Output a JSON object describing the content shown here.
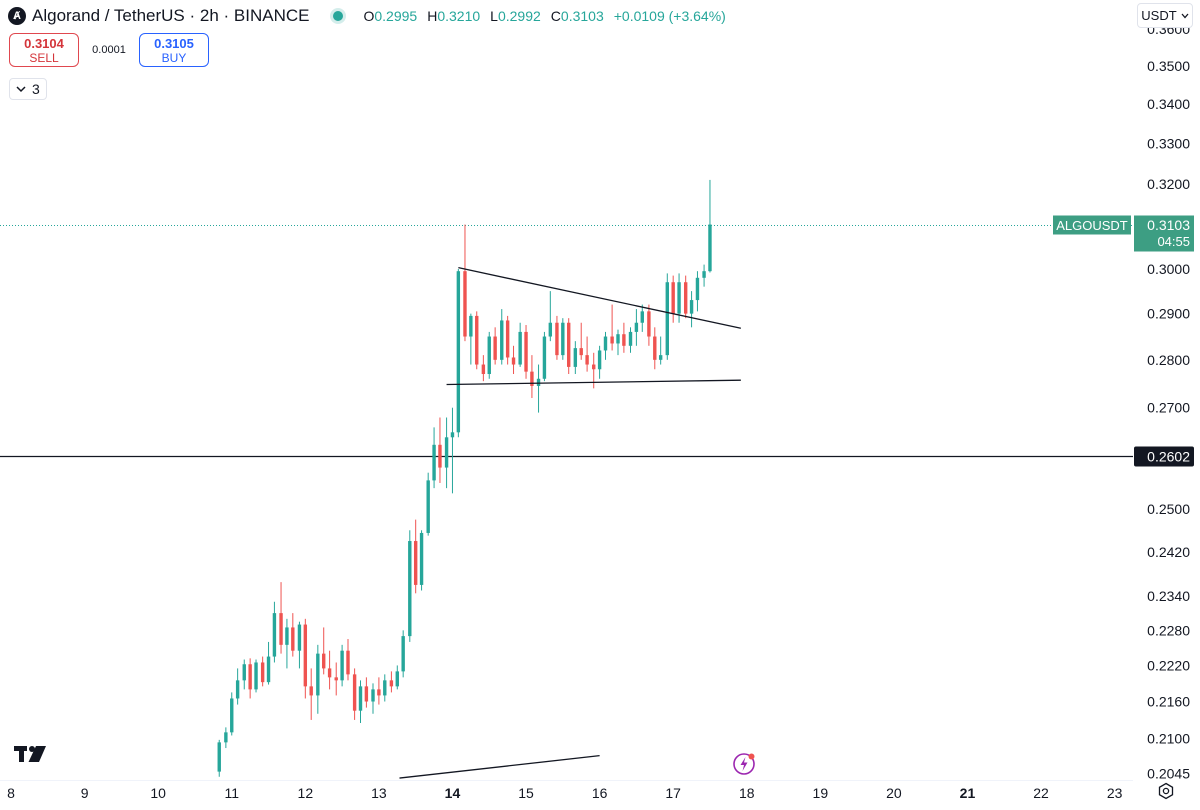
{
  "header": {
    "logo_icon": "algorand-logo-icon",
    "title": "Algorand / TetherUS · 2h · BINANCE",
    "ohlc": [
      {
        "k": "O",
        "v": "0.2995"
      },
      {
        "k": "H",
        "v": "0.3210"
      },
      {
        "k": "L",
        "v": "0.2992"
      },
      {
        "k": "C",
        "v": "0.3103"
      }
    ],
    "change": "+0.0109 (+3.64%)"
  },
  "trade": {
    "sell_price": "0.3104",
    "sell_label": "SELL",
    "spread": "0.0001",
    "buy_price": "0.3105",
    "buy_label": "BUY"
  },
  "indicators": {
    "count": "3"
  },
  "currency": {
    "label": "USDT"
  },
  "colors": {
    "up": "#26a69a",
    "down": "#ef5350",
    "price_tag": "#3d9e83",
    "level_tag": "#131722"
  },
  "chart_data": {
    "type": "candlestick",
    "symbol": "ALGOUSDT",
    "interval": "2h",
    "y_ticks": [
      "0.3600",
      "0.3500",
      "0.3400",
      "0.3300",
      "0.3200",
      "0.3000",
      "0.2900",
      "0.2800",
      "0.2700",
      "0.2500",
      "0.2420",
      "0.2340",
      "0.2280",
      "0.2220",
      "0.2160",
      "0.2100",
      "0.2045"
    ],
    "y_scale": "log",
    "y_range": [
      0.2035,
      0.368
    ],
    "x_labels": [
      {
        "day": 8,
        "label": "8"
      },
      {
        "day": 9,
        "label": "9"
      },
      {
        "day": 10,
        "label": "10"
      },
      {
        "day": 11,
        "label": "11"
      },
      {
        "day": 12,
        "label": "12"
      },
      {
        "day": 13,
        "label": "13"
      },
      {
        "day": 14,
        "label": "14",
        "bold": true
      },
      {
        "day": 15,
        "label": "15"
      },
      {
        "day": 16,
        "label": "16"
      },
      {
        "day": 17,
        "label": "17"
      },
      {
        "day": 18,
        "label": "18"
      },
      {
        "day": 19,
        "label": "19"
      },
      {
        "day": 20,
        "label": "20"
      },
      {
        "day": 21,
        "label": "21",
        "bold": true
      },
      {
        "day": 22,
        "label": "22"
      },
      {
        "day": 23,
        "label": "23"
      }
    ],
    "x_range": [
      7.85,
      23.25
    ],
    "candles": [
      {
        "t": 10.83,
        "o": 0.2048,
        "h": 0.2098,
        "l": 0.204,
        "c": 0.2094
      },
      {
        "t": 10.92,
        "o": 0.2094,
        "h": 0.2118,
        "l": 0.2085,
        "c": 0.211
      },
      {
        "t": 11.0,
        "o": 0.211,
        "h": 0.2175,
        "l": 0.2105,
        "c": 0.2165
      },
      {
        "t": 11.08,
        "o": 0.2165,
        "h": 0.2215,
        "l": 0.2155,
        "c": 0.2195
      },
      {
        "t": 11.17,
        "o": 0.2195,
        "h": 0.223,
        "l": 0.218,
        "c": 0.2222
      },
      {
        "t": 11.25,
        "o": 0.2222,
        "h": 0.2232,
        "l": 0.2165,
        "c": 0.218
      },
      {
        "t": 11.33,
        "o": 0.218,
        "h": 0.223,
        "l": 0.2175,
        "c": 0.2225
      },
      {
        "t": 11.42,
        "o": 0.2225,
        "h": 0.2235,
        "l": 0.2185,
        "c": 0.2192
      },
      {
        "t": 11.5,
        "o": 0.2192,
        "h": 0.226,
        "l": 0.2188,
        "c": 0.2235
      },
      {
        "t": 11.58,
        "o": 0.2235,
        "h": 0.233,
        "l": 0.2225,
        "c": 0.231
      },
      {
        "t": 11.67,
        "o": 0.231,
        "h": 0.2365,
        "l": 0.224,
        "c": 0.2255
      },
      {
        "t": 11.75,
        "o": 0.2255,
        "h": 0.23,
        "l": 0.2215,
        "c": 0.2285
      },
      {
        "t": 11.83,
        "o": 0.2285,
        "h": 0.231,
        "l": 0.2235,
        "c": 0.2245
      },
      {
        "t": 11.92,
        "o": 0.2245,
        "h": 0.2295,
        "l": 0.2215,
        "c": 0.229
      },
      {
        "t": 12.0,
        "o": 0.229,
        "h": 0.23,
        "l": 0.2165,
        "c": 0.2185
      },
      {
        "t": 12.08,
        "o": 0.2185,
        "h": 0.2215,
        "l": 0.213,
        "c": 0.217
      },
      {
        "t": 12.17,
        "o": 0.217,
        "h": 0.2255,
        "l": 0.214,
        "c": 0.224
      },
      {
        "t": 12.25,
        "o": 0.224,
        "h": 0.2285,
        "l": 0.2205,
        "c": 0.2215
      },
      {
        "t": 12.33,
        "o": 0.2215,
        "h": 0.2245,
        "l": 0.218,
        "c": 0.22
      },
      {
        "t": 12.42,
        "o": 0.22,
        "h": 0.2225,
        "l": 0.217,
        "c": 0.2195
      },
      {
        "t": 12.5,
        "o": 0.2195,
        "h": 0.2255,
        "l": 0.2185,
        "c": 0.2245
      },
      {
        "t": 12.58,
        "o": 0.2245,
        "h": 0.2265,
        "l": 0.2195,
        "c": 0.2205
      },
      {
        "t": 12.67,
        "o": 0.2205,
        "h": 0.2215,
        "l": 0.213,
        "c": 0.2145
      },
      {
        "t": 12.75,
        "o": 0.2145,
        "h": 0.2195,
        "l": 0.2125,
        "c": 0.2185
      },
      {
        "t": 12.83,
        "o": 0.2185,
        "h": 0.22,
        "l": 0.215,
        "c": 0.216
      },
      {
        "t": 12.92,
        "o": 0.216,
        "h": 0.219,
        "l": 0.214,
        "c": 0.218
      },
      {
        "t": 13.0,
        "o": 0.218,
        "h": 0.22,
        "l": 0.2155,
        "c": 0.217
      },
      {
        "t": 13.08,
        "o": 0.217,
        "h": 0.2205,
        "l": 0.216,
        "c": 0.2195
      },
      {
        "t": 13.17,
        "o": 0.2195,
        "h": 0.221,
        "l": 0.2175,
        "c": 0.2185
      },
      {
        "t": 13.25,
        "o": 0.2185,
        "h": 0.222,
        "l": 0.218,
        "c": 0.221
      },
      {
        "t": 13.33,
        "o": 0.221,
        "h": 0.228,
        "l": 0.22,
        "c": 0.227
      },
      {
        "t": 13.42,
        "o": 0.227,
        "h": 0.246,
        "l": 0.226,
        "c": 0.244
      },
      {
        "t": 13.5,
        "o": 0.244,
        "h": 0.248,
        "l": 0.2345,
        "c": 0.236
      },
      {
        "t": 13.58,
        "o": 0.236,
        "h": 0.246,
        "l": 0.235,
        "c": 0.2455
      },
      {
        "t": 13.67,
        "o": 0.2455,
        "h": 0.257,
        "l": 0.245,
        "c": 0.2555
      },
      {
        "t": 13.75,
        "o": 0.2555,
        "h": 0.266,
        "l": 0.254,
        "c": 0.2625
      },
      {
        "t": 13.83,
        "o": 0.2625,
        "h": 0.268,
        "l": 0.255,
        "c": 0.258
      },
      {
        "t": 13.92,
        "o": 0.258,
        "h": 0.268,
        "l": 0.254,
        "c": 0.264
      },
      {
        "t": 14.0,
        "o": 0.264,
        "h": 0.27,
        "l": 0.253,
        "c": 0.265
      },
      {
        "t": 14.08,
        "o": 0.265,
        "h": 0.3,
        "l": 0.264,
        "c": 0.2995
      },
      {
        "t": 14.17,
        "o": 0.2995,
        "h": 0.3103,
        "l": 0.284,
        "c": 0.285
      },
      {
        "t": 14.25,
        "o": 0.285,
        "h": 0.29,
        "l": 0.279,
        "c": 0.2895
      },
      {
        "t": 14.33,
        "o": 0.2895,
        "h": 0.2905,
        "l": 0.278,
        "c": 0.279
      },
      {
        "t": 14.42,
        "o": 0.279,
        "h": 0.281,
        "l": 0.2755,
        "c": 0.277
      },
      {
        "t": 14.5,
        "o": 0.277,
        "h": 0.286,
        "l": 0.276,
        "c": 0.285
      },
      {
        "t": 14.58,
        "o": 0.285,
        "h": 0.287,
        "l": 0.279,
        "c": 0.28
      },
      {
        "t": 14.67,
        "o": 0.28,
        "h": 0.291,
        "l": 0.279,
        "c": 0.2885
      },
      {
        "t": 14.75,
        "o": 0.2885,
        "h": 0.2895,
        "l": 0.279,
        "c": 0.2805
      },
      {
        "t": 14.83,
        "o": 0.2805,
        "h": 0.283,
        "l": 0.277,
        "c": 0.279
      },
      {
        "t": 14.92,
        "o": 0.279,
        "h": 0.288,
        "l": 0.2785,
        "c": 0.286
      },
      {
        "t": 15.0,
        "o": 0.286,
        "h": 0.2875,
        "l": 0.276,
        "c": 0.2775
      },
      {
        "t": 15.08,
        "o": 0.2775,
        "h": 0.281,
        "l": 0.272,
        "c": 0.2745
      },
      {
        "t": 15.17,
        "o": 0.2745,
        "h": 0.279,
        "l": 0.269,
        "c": 0.276
      },
      {
        "t": 15.25,
        "o": 0.276,
        "h": 0.286,
        "l": 0.2755,
        "c": 0.285
      },
      {
        "t": 15.33,
        "o": 0.285,
        "h": 0.295,
        "l": 0.284,
        "c": 0.288
      },
      {
        "t": 15.42,
        "o": 0.288,
        "h": 0.2895,
        "l": 0.28,
        "c": 0.281
      },
      {
        "t": 15.5,
        "o": 0.281,
        "h": 0.289,
        "l": 0.28,
        "c": 0.288
      },
      {
        "t": 15.58,
        "o": 0.288,
        "h": 0.289,
        "l": 0.277,
        "c": 0.2785
      },
      {
        "t": 15.67,
        "o": 0.2785,
        "h": 0.284,
        "l": 0.277,
        "c": 0.2825
      },
      {
        "t": 15.75,
        "o": 0.2825,
        "h": 0.288,
        "l": 0.28,
        "c": 0.281
      },
      {
        "t": 15.83,
        "o": 0.281,
        "h": 0.285,
        "l": 0.2775,
        "c": 0.279
      },
      {
        "t": 15.92,
        "o": 0.279,
        "h": 0.2815,
        "l": 0.274,
        "c": 0.278
      },
      {
        "t": 16.0,
        "o": 0.278,
        "h": 0.283,
        "l": 0.276,
        "c": 0.282
      },
      {
        "t": 16.08,
        "o": 0.282,
        "h": 0.286,
        "l": 0.28,
        "c": 0.285
      },
      {
        "t": 16.17,
        "o": 0.285,
        "h": 0.292,
        "l": 0.282,
        "c": 0.2835
      },
      {
        "t": 16.25,
        "o": 0.2835,
        "h": 0.2865,
        "l": 0.281,
        "c": 0.2855
      },
      {
        "t": 16.33,
        "o": 0.2855,
        "h": 0.288,
        "l": 0.2815,
        "c": 0.283
      },
      {
        "t": 16.42,
        "o": 0.283,
        "h": 0.287,
        "l": 0.2815,
        "c": 0.286
      },
      {
        "t": 16.5,
        "o": 0.286,
        "h": 0.291,
        "l": 0.283,
        "c": 0.288
      },
      {
        "t": 16.58,
        "o": 0.288,
        "h": 0.292,
        "l": 0.286,
        "c": 0.2905
      },
      {
        "t": 16.67,
        "o": 0.2905,
        "h": 0.292,
        "l": 0.283,
        "c": 0.285
      },
      {
        "t": 16.75,
        "o": 0.285,
        "h": 0.287,
        "l": 0.278,
        "c": 0.28
      },
      {
        "t": 16.83,
        "o": 0.28,
        "h": 0.285,
        "l": 0.279,
        "c": 0.281
      },
      {
        "t": 16.92,
        "o": 0.281,
        "h": 0.299,
        "l": 0.28,
        "c": 0.297
      },
      {
        "t": 17.0,
        "o": 0.297,
        "h": 0.2985,
        "l": 0.288,
        "c": 0.29
      },
      {
        "t": 17.08,
        "o": 0.29,
        "h": 0.299,
        "l": 0.288,
        "c": 0.297
      },
      {
        "t": 17.17,
        "o": 0.297,
        "h": 0.2985,
        "l": 0.289,
        "c": 0.29
      },
      {
        "t": 17.25,
        "o": 0.29,
        "h": 0.295,
        "l": 0.287,
        "c": 0.293
      },
      {
        "t": 17.33,
        "o": 0.293,
        "h": 0.2995,
        "l": 0.2905,
        "c": 0.298
      },
      {
        "t": 17.42,
        "o": 0.298,
        "h": 0.301,
        "l": 0.296,
        "c": 0.2995
      },
      {
        "t": 17.5,
        "o": 0.2995,
        "h": 0.321,
        "l": 0.2992,
        "c": 0.3103
      }
    ],
    "price_line": {
      "value": 0.3103,
      "symbol_label": "ALGOUSDT",
      "price_label": "0.3103",
      "countdown": "04:55"
    },
    "horizontal_level": {
      "value": 0.2602,
      "label": "0.2602"
    },
    "trendlines": [
      {
        "from": {
          "t": 14.08,
          "v": 0.3003
        },
        "to": {
          "t": 17.92,
          "v": 0.2868
        }
      },
      {
        "from": {
          "t": 13.92,
          "v": 0.2748
        },
        "to": {
          "t": 17.92,
          "v": 0.2757
        }
      },
      {
        "from": {
          "t": 13.28,
          "v": 0.2038
        },
        "to": {
          "t": 16.0,
          "v": 0.2073
        }
      }
    ]
  }
}
